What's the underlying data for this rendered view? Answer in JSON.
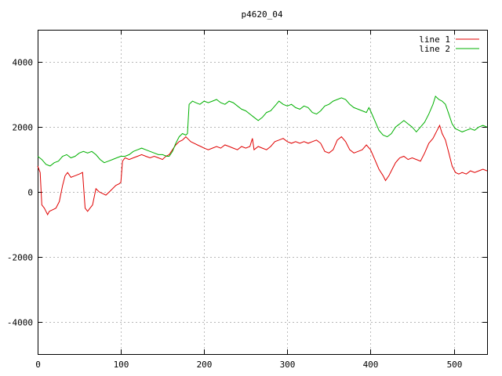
{
  "chart_data": {
    "type": "line",
    "title": "p4620_04",
    "xlabel": "",
    "ylabel": "",
    "xlim": [
      0,
      540
    ],
    "ylim": [
      -5000,
      5000
    ],
    "xticks": [
      0,
      100,
      200,
      300,
      400,
      500
    ],
    "yticks": [
      -4000,
      -2000,
      0,
      2000,
      4000
    ],
    "grid": true,
    "legend_position": "top-right",
    "series": [
      {
        "name": "line 1",
        "color": "#e00000",
        "points": [
          [
            0,
            800
          ],
          [
            3,
            600
          ],
          [
            5,
            -400
          ],
          [
            8,
            -500
          ],
          [
            10,
            -600
          ],
          [
            12,
            -700
          ],
          [
            14,
            -600
          ],
          [
            18,
            -550
          ],
          [
            22,
            -500
          ],
          [
            26,
            -300
          ],
          [
            30,
            200
          ],
          [
            33,
            500
          ],
          [
            36,
            600
          ],
          [
            40,
            450
          ],
          [
            45,
            500
          ],
          [
            50,
            550
          ],
          [
            54,
            600
          ],
          [
            57,
            -500
          ],
          [
            60,
            -600
          ],
          [
            63,
            -500
          ],
          [
            66,
            -400
          ],
          [
            70,
            100
          ],
          [
            74,
            0
          ],
          [
            78,
            -50
          ],
          [
            82,
            -100
          ],
          [
            86,
            0
          ],
          [
            90,
            100
          ],
          [
            94,
            200
          ],
          [
            98,
            250
          ],
          [
            100,
            300
          ],
          [
            102,
            950
          ],
          [
            105,
            1050
          ],
          [
            110,
            1000
          ],
          [
            115,
            1050
          ],
          [
            120,
            1100
          ],
          [
            125,
            1150
          ],
          [
            130,
            1100
          ],
          [
            135,
            1050
          ],
          [
            140,
            1100
          ],
          [
            145,
            1050
          ],
          [
            150,
            1000
          ],
          [
            154,
            1100
          ],
          [
            158,
            1150
          ],
          [
            162,
            1300
          ],
          [
            166,
            1450
          ],
          [
            170,
            1550
          ],
          [
            174,
            1600
          ],
          [
            178,
            1700
          ],
          [
            180,
            1650
          ],
          [
            184,
            1550
          ],
          [
            188,
            1500
          ],
          [
            192,
            1450
          ],
          [
            196,
            1400
          ],
          [
            200,
            1350
          ],
          [
            205,
            1300
          ],
          [
            210,
            1350
          ],
          [
            215,
            1400
          ],
          [
            220,
            1350
          ],
          [
            225,
            1450
          ],
          [
            230,
            1400
          ],
          [
            235,
            1350
          ],
          [
            240,
            1300
          ],
          [
            245,
            1400
          ],
          [
            250,
            1350
          ],
          [
            255,
            1400
          ],
          [
            258,
            1650
          ],
          [
            260,
            1300
          ],
          [
            265,
            1400
          ],
          [
            270,
            1350
          ],
          [
            275,
            1300
          ],
          [
            280,
            1400
          ],
          [
            285,
            1550
          ],
          [
            290,
            1600
          ],
          [
            295,
            1650
          ],
          [
            300,
            1550
          ],
          [
            305,
            1500
          ],
          [
            310,
            1550
          ],
          [
            315,
            1500
          ],
          [
            320,
            1550
          ],
          [
            325,
            1500
          ],
          [
            330,
            1550
          ],
          [
            335,
            1600
          ],
          [
            340,
            1500
          ],
          [
            345,
            1250
          ],
          [
            350,
            1200
          ],
          [
            355,
            1300
          ],
          [
            360,
            1600
          ],
          [
            365,
            1700
          ],
          [
            370,
            1550
          ],
          [
            375,
            1300
          ],
          [
            380,
            1200
          ],
          [
            385,
            1250
          ],
          [
            390,
            1300
          ],
          [
            395,
            1450
          ],
          [
            400,
            1300
          ],
          [
            405,
            1000
          ],
          [
            410,
            700
          ],
          [
            415,
            500
          ],
          [
            418,
            350
          ],
          [
            422,
            500
          ],
          [
            426,
            700
          ],
          [
            430,
            900
          ],
          [
            435,
            1050
          ],
          [
            440,
            1100
          ],
          [
            445,
            1000
          ],
          [
            450,
            1050
          ],
          [
            455,
            1000
          ],
          [
            460,
            950
          ],
          [
            465,
            1200
          ],
          [
            470,
            1500
          ],
          [
            475,
            1650
          ],
          [
            480,
            1900
          ],
          [
            483,
            2050
          ],
          [
            486,
            1800
          ],
          [
            490,
            1600
          ],
          [
            494,
            1200
          ],
          [
            498,
            800
          ],
          [
            502,
            600
          ],
          [
            506,
            550
          ],
          [
            510,
            600
          ],
          [
            515,
            550
          ],
          [
            520,
            650
          ],
          [
            525,
            600
          ],
          [
            530,
            650
          ],
          [
            535,
            700
          ],
          [
            540,
            650
          ]
        ]
      },
      {
        "name": "line 2",
        "color": "#00b000",
        "points": [
          [
            0,
            1100
          ],
          [
            5,
            1000
          ],
          [
            10,
            850
          ],
          [
            15,
            800
          ],
          [
            20,
            900
          ],
          [
            25,
            950
          ],
          [
            30,
            1100
          ],
          [
            35,
            1150
          ],
          [
            40,
            1050
          ],
          [
            45,
            1100
          ],
          [
            50,
            1200
          ],
          [
            55,
            1250
          ],
          [
            60,
            1200
          ],
          [
            65,
            1250
          ],
          [
            70,
            1150
          ],
          [
            75,
            1000
          ],
          [
            80,
            900
          ],
          [
            85,
            950
          ],
          [
            90,
            1000
          ],
          [
            95,
            1050
          ],
          [
            100,
            1100
          ],
          [
            105,
            1100
          ],
          [
            110,
            1150
          ],
          [
            115,
            1250
          ],
          [
            120,
            1300
          ],
          [
            125,
            1350
          ],
          [
            130,
            1300
          ],
          [
            135,
            1250
          ],
          [
            140,
            1200
          ],
          [
            145,
            1150
          ],
          [
            150,
            1150
          ],
          [
            155,
            1100
          ],
          [
            158,
            1100
          ],
          [
            162,
            1250
          ],
          [
            166,
            1500
          ],
          [
            170,
            1700
          ],
          [
            174,
            1800
          ],
          [
            178,
            1750
          ],
          [
            180,
            1800
          ],
          [
            182,
            2700
          ],
          [
            186,
            2800
          ],
          [
            190,
            2750
          ],
          [
            195,
            2700
          ],
          [
            200,
            2800
          ],
          [
            205,
            2750
          ],
          [
            210,
            2800
          ],
          [
            215,
            2850
          ],
          [
            220,
            2750
          ],
          [
            225,
            2700
          ],
          [
            230,
            2800
          ],
          [
            235,
            2750
          ],
          [
            240,
            2650
          ],
          [
            245,
            2550
          ],
          [
            250,
            2500
          ],
          [
            255,
            2400
          ],
          [
            260,
            2300
          ],
          [
            265,
            2200
          ],
          [
            270,
            2300
          ],
          [
            275,
            2450
          ],
          [
            280,
            2500
          ],
          [
            285,
            2650
          ],
          [
            290,
            2800
          ],
          [
            295,
            2700
          ],
          [
            300,
            2650
          ],
          [
            305,
            2700
          ],
          [
            310,
            2600
          ],
          [
            315,
            2550
          ],
          [
            320,
            2650
          ],
          [
            325,
            2600
          ],
          [
            330,
            2450
          ],
          [
            335,
            2400
          ],
          [
            340,
            2500
          ],
          [
            345,
            2650
          ],
          [
            350,
            2700
          ],
          [
            355,
            2800
          ],
          [
            360,
            2850
          ],
          [
            365,
            2900
          ],
          [
            370,
            2850
          ],
          [
            375,
            2700
          ],
          [
            380,
            2600
          ],
          [
            385,
            2550
          ],
          [
            390,
            2500
          ],
          [
            395,
            2450
          ],
          [
            398,
            2600
          ],
          [
            400,
            2500
          ],
          [
            405,
            2200
          ],
          [
            410,
            1900
          ],
          [
            415,
            1750
          ],
          [
            420,
            1700
          ],
          [
            425,
            1800
          ],
          [
            430,
            2000
          ],
          [
            435,
            2100
          ],
          [
            440,
            2200
          ],
          [
            445,
            2100
          ],
          [
            450,
            2000
          ],
          [
            455,
            1850
          ],
          [
            460,
            2000
          ],
          [
            465,
            2150
          ],
          [
            470,
            2400
          ],
          [
            475,
            2700
          ],
          [
            478,
            2950
          ],
          [
            482,
            2850
          ],
          [
            486,
            2800
          ],
          [
            490,
            2700
          ],
          [
            494,
            2400
          ],
          [
            498,
            2100
          ],
          [
            502,
            1950
          ],
          [
            506,
            1900
          ],
          [
            510,
            1850
          ],
          [
            515,
            1900
          ],
          [
            520,
            1950
          ],
          [
            525,
            1900
          ],
          [
            530,
            2000
          ],
          [
            535,
            2050
          ],
          [
            540,
            2000
          ]
        ]
      }
    ]
  }
}
